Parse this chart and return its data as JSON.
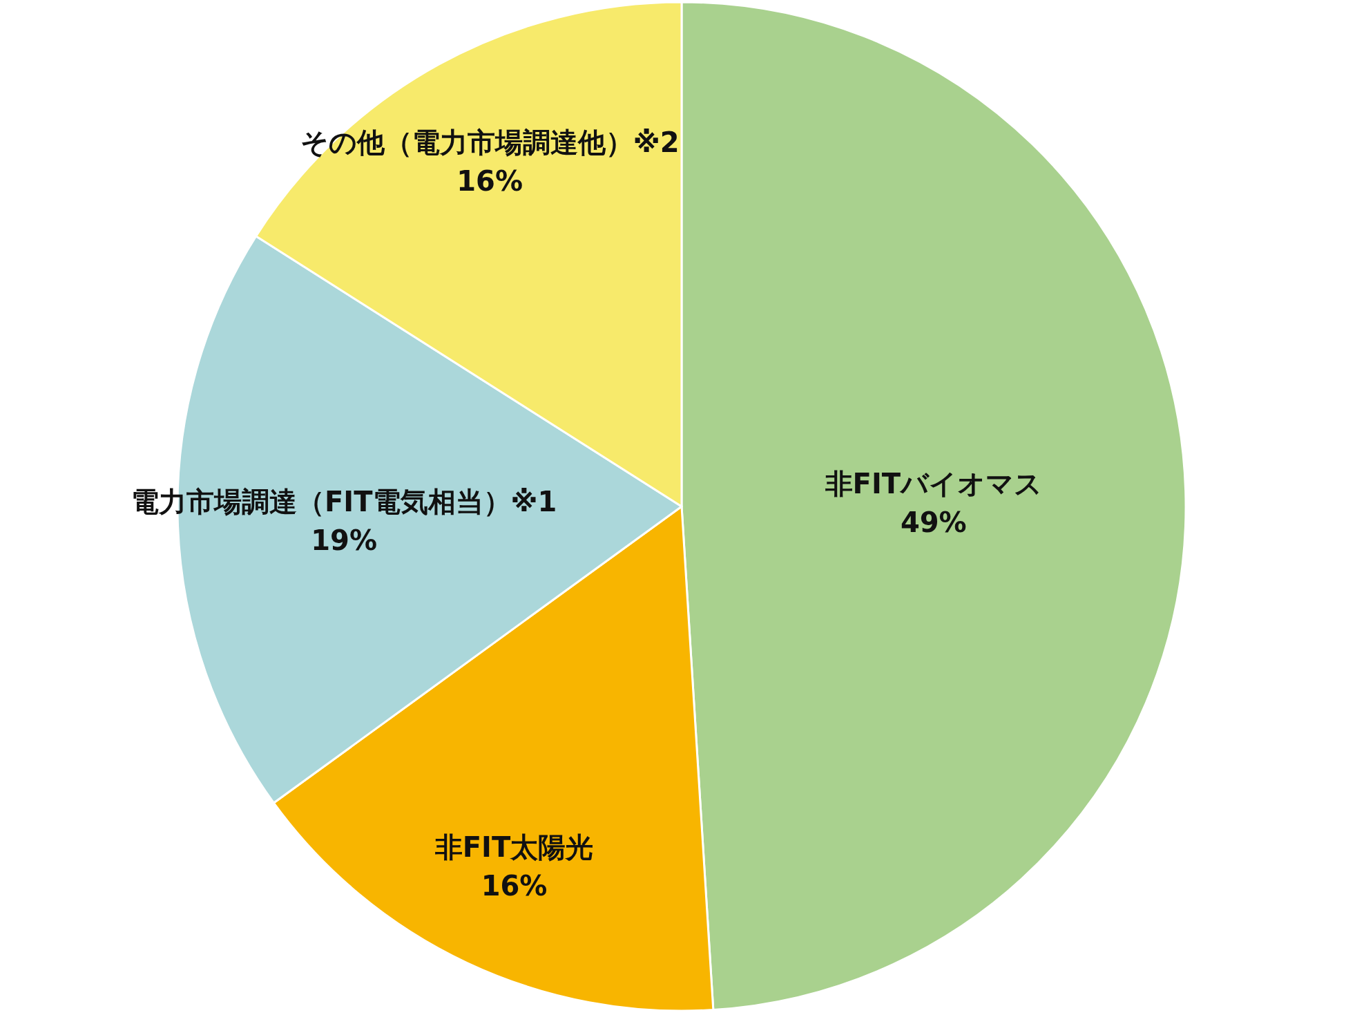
{
  "chart_data": {
    "type": "pie",
    "categories": [
      "非FITバイオマス",
      "非FIT太陽光",
      "電力市場調達（FIT電気相当）※1",
      "その他（電力市場調達他）※2"
    ],
    "values": [
      49,
      16,
      19,
      16
    ],
    "colors": [
      "#a9d18e",
      "#f8b500",
      "#abd7da",
      "#f7ea6b"
    ],
    "value_labels": [
      "49%",
      "16%",
      "19%",
      "16%"
    ]
  }
}
